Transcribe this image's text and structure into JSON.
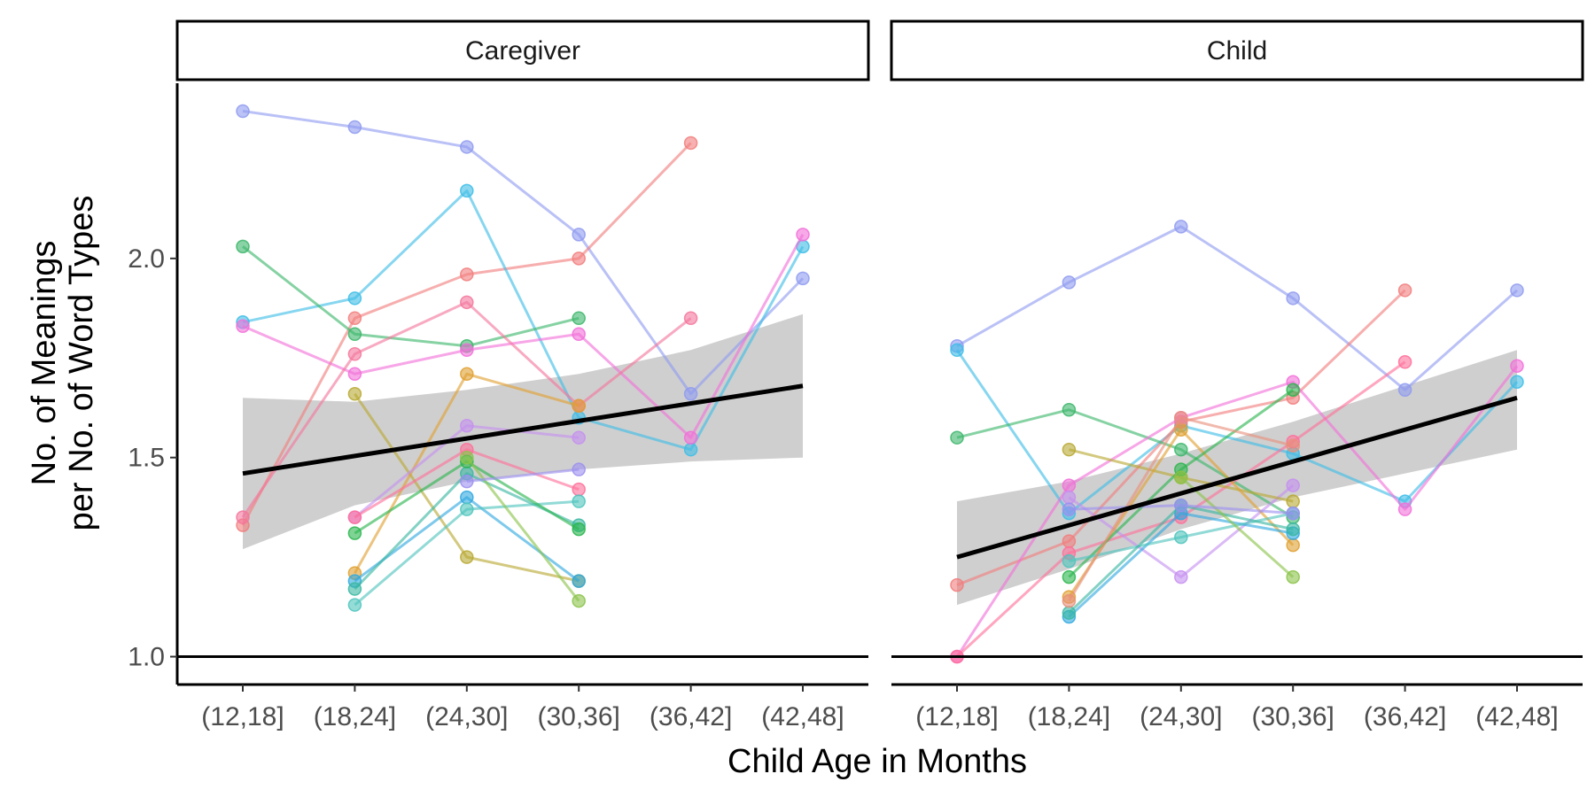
{
  "chart_data": {
    "type": "line",
    "xlabel": "Child Age in Months",
    "ylabel_lines": [
      "No. of Meanings",
      "per No. of Word Types"
    ],
    "categories": [
      "(12,18]",
      "(18,24]",
      "(24,30]",
      "(30,36]",
      "(36,42]",
      "(42,48]"
    ],
    "yticks": [
      "1.0",
      "1.5",
      "2.0"
    ],
    "ylim": [
      0.93,
      2.44
    ],
    "reference_line": 1.0,
    "grid": false,
    "legend": "none",
    "facets": [
      {
        "label": "Caregiver",
        "trend": {
          "start": 1.46,
          "end": 1.68
        },
        "band": {
          "upper": [
            1.65,
            1.64,
            1.67,
            1.71,
            1.77,
            1.86
          ],
          "lower": [
            1.27,
            1.38,
            1.44,
            1.47,
            1.49,
            1.5
          ]
        },
        "series": [
          {
            "color": "#8f9bf0",
            "values": [
              2.37,
              2.33,
              2.28,
              2.06,
              1.66,
              1.95
            ]
          },
          {
            "color": "#f27d7d",
            "values": [
              1.33,
              1.85,
              1.96,
              2.0,
              2.29,
              null
            ]
          },
          {
            "color": "#3dbde6",
            "values": [
              1.84,
              1.9,
              2.17,
              1.6,
              1.52,
              2.03
            ]
          },
          {
            "color": "#3cb66a",
            "values": [
              2.03,
              1.81,
              1.78,
              1.85,
              null,
              null
            ]
          },
          {
            "color": "#f26fd9",
            "values": [
              1.83,
              1.71,
              1.77,
              1.81,
              1.55,
              2.06
            ]
          },
          {
            "color": "#f4769c",
            "values": [
              1.35,
              1.76,
              1.89,
              1.63,
              1.85,
              null
            ]
          },
          {
            "color": "#b8a832",
            "values": [
              null,
              1.66,
              1.25,
              1.19,
              null,
              null
            ]
          },
          {
            "color": "#e0a030",
            "values": [
              null,
              1.21,
              1.71,
              1.63,
              null,
              null
            ]
          },
          {
            "color": "#c58ff0",
            "values": [
              null,
              1.35,
              1.58,
              1.55,
              null,
              null
            ]
          },
          {
            "color": "#ff6f9a",
            "values": [
              null,
              1.35,
              1.52,
              1.42,
              null,
              null
            ]
          },
          {
            "color": "#2fa8e0",
            "values": [
              null,
              1.19,
              1.4,
              1.19,
              null,
              null
            ]
          },
          {
            "color": "#4fc4bd",
            "values": [
              null,
              1.13,
              1.37,
              1.39,
              null,
              null
            ]
          },
          {
            "color": "#39b7a1",
            "values": [
              null,
              1.17,
              1.46,
              1.33,
              null,
              null
            ]
          },
          {
            "color": "#2ab54d",
            "values": [
              null,
              1.31,
              1.49,
              1.32,
              null,
              null
            ]
          },
          {
            "color": "#8bc34a",
            "values": [
              null,
              null,
              1.5,
              1.14,
              null,
              null
            ]
          },
          {
            "color": "#9b8ff0",
            "values": [
              null,
              null,
              1.44,
              1.47,
              null,
              null
            ]
          }
        ]
      },
      {
        "label": "Child",
        "trend": {
          "start": 1.25,
          "end": 1.65
        },
        "band": {
          "upper": [
            1.39,
            1.44,
            1.51,
            1.59,
            1.68,
            1.77
          ],
          "lower": [
            1.13,
            1.22,
            1.32,
            1.4,
            1.46,
            1.52
          ]
        },
        "series": [
          {
            "color": "#8f9bf0",
            "values": [
              1.78,
              1.94,
              2.08,
              1.9,
              1.67,
              1.92
            ]
          },
          {
            "color": "#3dbde6",
            "values": [
              1.77,
              1.36,
              1.58,
              1.51,
              1.39,
              1.69
            ]
          },
          {
            "color": "#f27d7d",
            "values": [
              1.18,
              1.29,
              1.59,
              1.65,
              1.92,
              null
            ]
          },
          {
            "color": "#3cb66a",
            "values": [
              1.55,
              1.62,
              1.52,
              1.35,
              null,
              null
            ]
          },
          {
            "color": "#f26fd9",
            "values": [
              1.0,
              1.43,
              1.6,
              1.69,
              1.37,
              1.73
            ]
          },
          {
            "color": "#ff6f9a",
            "values": [
              1.0,
              1.26,
              1.35,
              1.54,
              1.74,
              null
            ]
          },
          {
            "color": "#c58ff0",
            "values": [
              null,
              1.4,
              1.2,
              1.43,
              null,
              null
            ]
          },
          {
            "color": "#b8a832",
            "values": [
              null,
              1.52,
              1.45,
              1.39,
              null,
              null
            ]
          },
          {
            "color": "#e0a030",
            "values": [
              null,
              1.15,
              1.57,
              1.28,
              null,
              null
            ]
          },
          {
            "color": "#2ab54d",
            "values": [
              null,
              1.2,
              1.47,
              1.67,
              null,
              null
            ]
          },
          {
            "color": "#2fa8e0",
            "values": [
              null,
              1.1,
              1.36,
              1.31,
              null,
              null
            ]
          },
          {
            "color": "#4fc4bd",
            "values": [
              null,
              1.24,
              1.3,
              1.36,
              null,
              null
            ]
          },
          {
            "color": "#39b7a1",
            "values": [
              null,
              1.11,
              1.38,
              1.32,
              null,
              null
            ]
          },
          {
            "color": "#e8907a",
            "values": [
              null,
              1.14,
              1.6,
              1.53,
              null,
              null
            ]
          },
          {
            "color": "#8bc34a",
            "values": [
              null,
              null,
              1.45,
              1.2,
              null,
              null
            ]
          },
          {
            "color": "#9b8ff0",
            "values": [
              null,
              1.37,
              1.38,
              1.36,
              null,
              null
            ]
          }
        ]
      }
    ]
  }
}
